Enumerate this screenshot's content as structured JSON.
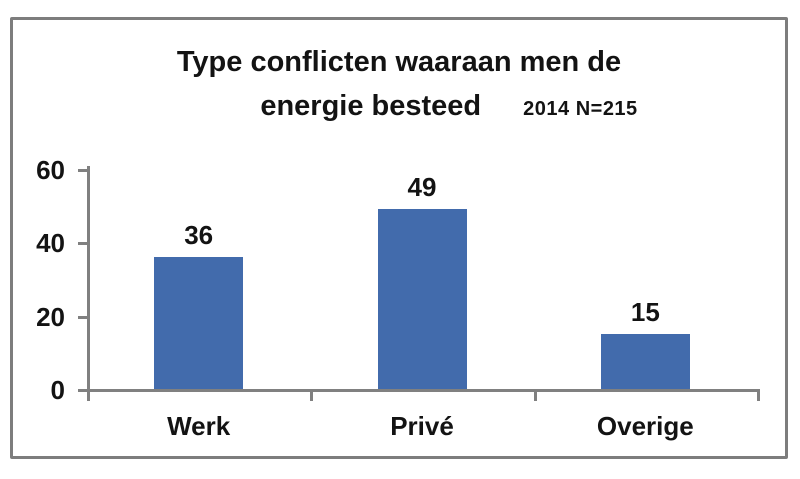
{
  "chart_data": {
    "type": "bar",
    "title_line1": "Type conflicten waaraan men de",
    "title_line2": "energie besteed",
    "annotation": "2014 N=215",
    "categories": [
      "Werk",
      "Privé",
      "Overige"
    ],
    "values": [
      36,
      49,
      15
    ],
    "yticks": [
      0,
      20,
      40,
      60
    ],
    "ylim": [
      0,
      60
    ],
    "grid": false,
    "legend": false,
    "bar_color": "#426BAC",
    "axis_color": "#808080",
    "frame_border_color": "#7d7d7d",
    "text_color": "#131313"
  }
}
